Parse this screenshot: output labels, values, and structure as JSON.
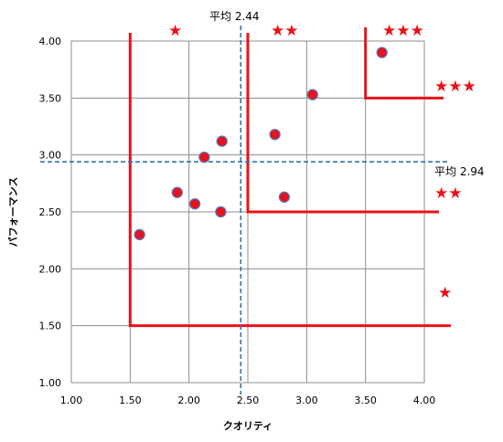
{
  "chart_data": {
    "type": "scatter",
    "xlabel": "クオリティ",
    "ylabel": "パフォーマンス",
    "xlim": [
      1.0,
      4.0
    ],
    "ylim": [
      1.0,
      4.0
    ],
    "x_ticks": [
      "1.00",
      "1.50",
      "2.00",
      "2.50",
      "3.00",
      "3.50",
      "4.00"
    ],
    "y_ticks": [
      "1.00",
      "1.50",
      "2.00",
      "2.50",
      "3.00",
      "3.50",
      "4.00"
    ],
    "grid": true,
    "points": [
      {
        "x": 1.58,
        "y": 2.3
      },
      {
        "x": 1.9,
        "y": 2.67
      },
      {
        "x": 2.05,
        "y": 2.57
      },
      {
        "x": 2.13,
        "y": 2.98
      },
      {
        "x": 2.27,
        "y": 2.5
      },
      {
        "x": 2.28,
        "y": 3.12
      },
      {
        "x": 2.73,
        "y": 3.18
      },
      {
        "x": 2.81,
        "y": 2.63
      },
      {
        "x": 3.05,
        "y": 3.53
      },
      {
        "x": 3.64,
        "y": 3.9
      }
    ],
    "point_color": "#e8121a",
    "averages": {
      "x": {
        "value": 2.44,
        "label": "平均 2.44"
      },
      "y": {
        "value": 2.94,
        "label": "平均 2.94"
      }
    },
    "average_line_color": "#2e75b6",
    "zone_color": "#e8121a",
    "zones": [
      {
        "x_from": 1.5,
        "y_from": 1.5,
        "label": "★"
      },
      {
        "x_from": 2.5,
        "y_from": 2.5,
        "label": "★★"
      },
      {
        "x_from": 3.5,
        "y_from": 3.5,
        "label": "★★★"
      }
    ]
  }
}
